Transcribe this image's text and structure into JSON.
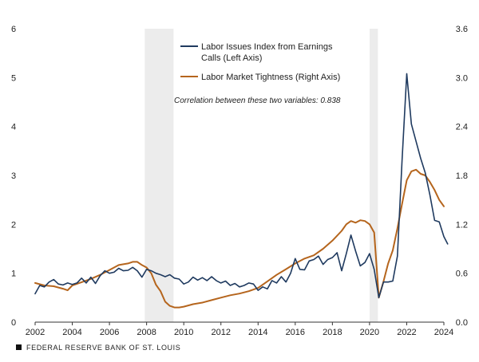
{
  "chart_data": {
    "type": "line",
    "left_axis": {
      "range": [
        0,
        6
      ],
      "ticks": [
        "0",
        "1",
        "2",
        "3",
        "4",
        "5",
        "6"
      ]
    },
    "right_axis": {
      "range": [
        0,
        3.6
      ],
      "ticks": [
        "0.0",
        "0.6",
        "1.2",
        "1.8",
        "2.4",
        "3.0",
        "3.6"
      ]
    },
    "x_axis": {
      "range": [
        2002,
        2024
      ],
      "ticks": [
        "2002",
        "2004",
        "2006",
        "2008",
        "2010",
        "2012",
        "2014",
        "2016",
        "2018",
        "2020",
        "2022",
        "2024"
      ]
    },
    "recessions": [
      [
        2007.9,
        2009.45
      ],
      [
        2020.0,
        2020.45
      ]
    ],
    "series": [
      {
        "name": "Labor Issues Index from Earnings Calls (Left Axis)",
        "axis": "left",
        "color": "#1f3a5f",
        "points": [
          [
            2002.0,
            0.58
          ],
          [
            2002.25,
            0.75
          ],
          [
            2002.5,
            0.72
          ],
          [
            2002.75,
            0.82
          ],
          [
            2003.0,
            0.87
          ],
          [
            2003.25,
            0.78
          ],
          [
            2003.5,
            0.76
          ],
          [
            2003.75,
            0.8
          ],
          [
            2004.0,
            0.77
          ],
          [
            2004.25,
            0.8
          ],
          [
            2004.5,
            0.9
          ],
          [
            2004.75,
            0.8
          ],
          [
            2005.0,
            0.92
          ],
          [
            2005.25,
            0.79
          ],
          [
            2005.5,
            0.95
          ],
          [
            2005.75,
            1.05
          ],
          [
            2006.0,
            1.0
          ],
          [
            2006.25,
            1.02
          ],
          [
            2006.5,
            1.1
          ],
          [
            2006.75,
            1.05
          ],
          [
            2007.0,
            1.06
          ],
          [
            2007.25,
            1.12
          ],
          [
            2007.5,
            1.05
          ],
          [
            2007.75,
            0.92
          ],
          [
            2008.0,
            1.08
          ],
          [
            2008.25,
            1.05
          ],
          [
            2008.5,
            1.0
          ],
          [
            2008.75,
            0.97
          ],
          [
            2009.0,
            0.93
          ],
          [
            2009.25,
            0.97
          ],
          [
            2009.5,
            0.9
          ],
          [
            2009.75,
            0.88
          ],
          [
            2010.0,
            0.78
          ],
          [
            2010.25,
            0.82
          ],
          [
            2010.5,
            0.92
          ],
          [
            2010.75,
            0.86
          ],
          [
            2011.0,
            0.91
          ],
          [
            2011.25,
            0.85
          ],
          [
            2011.5,
            0.93
          ],
          [
            2011.75,
            0.85
          ],
          [
            2012.0,
            0.8
          ],
          [
            2012.25,
            0.84
          ],
          [
            2012.5,
            0.75
          ],
          [
            2012.75,
            0.79
          ],
          [
            2013.0,
            0.72
          ],
          [
            2013.25,
            0.75
          ],
          [
            2013.5,
            0.8
          ],
          [
            2013.75,
            0.78
          ],
          [
            2014.0,
            0.65
          ],
          [
            2014.25,
            0.72
          ],
          [
            2014.5,
            0.68
          ],
          [
            2014.75,
            0.85
          ],
          [
            2015.0,
            0.8
          ],
          [
            2015.25,
            0.93
          ],
          [
            2015.5,
            0.82
          ],
          [
            2015.75,
            1.0
          ],
          [
            2016.0,
            1.3
          ],
          [
            2016.25,
            1.08
          ],
          [
            2016.5,
            1.07
          ],
          [
            2016.75,
            1.25
          ],
          [
            2017.0,
            1.28
          ],
          [
            2017.25,
            1.35
          ],
          [
            2017.5,
            1.18
          ],
          [
            2017.75,
            1.28
          ],
          [
            2018.0,
            1.32
          ],
          [
            2018.25,
            1.42
          ],
          [
            2018.5,
            1.05
          ],
          [
            2018.75,
            1.4
          ],
          [
            2019.0,
            1.78
          ],
          [
            2019.25,
            1.45
          ],
          [
            2019.5,
            1.15
          ],
          [
            2019.75,
            1.22
          ],
          [
            2020.0,
            1.4
          ],
          [
            2020.25,
            1.08
          ],
          [
            2020.5,
            0.5
          ],
          [
            2020.75,
            0.82
          ],
          [
            2021.0,
            0.82
          ],
          [
            2021.25,
            0.84
          ],
          [
            2021.5,
            1.35
          ],
          [
            2021.75,
            3.3
          ],
          [
            2022.0,
            5.08
          ],
          [
            2022.25,
            4.05
          ],
          [
            2022.5,
            3.7
          ],
          [
            2022.75,
            3.35
          ],
          [
            2023.0,
            3.05
          ],
          [
            2023.25,
            2.6
          ],
          [
            2023.5,
            2.08
          ],
          [
            2023.75,
            2.05
          ],
          [
            2024.0,
            1.75
          ],
          [
            2024.2,
            1.6
          ]
        ]
      },
      {
        "name": "Labor Market Tightness (Right Axis)",
        "axis": "right",
        "color": "#b5651d",
        "points": [
          [
            2002.0,
            0.48
          ],
          [
            2002.5,
            0.45
          ],
          [
            2003.0,
            0.44
          ],
          [
            2003.5,
            0.41
          ],
          [
            2003.75,
            0.39
          ],
          [
            2004.0,
            0.45
          ],
          [
            2004.5,
            0.49
          ],
          [
            2005.0,
            0.53
          ],
          [
            2005.5,
            0.58
          ],
          [
            2006.0,
            0.64
          ],
          [
            2006.5,
            0.7
          ],
          [
            2007.0,
            0.72
          ],
          [
            2007.25,
            0.74
          ],
          [
            2007.5,
            0.74
          ],
          [
            2007.75,
            0.7
          ],
          [
            2008.0,
            0.67
          ],
          [
            2008.25,
            0.6
          ],
          [
            2008.5,
            0.46
          ],
          [
            2008.75,
            0.38
          ],
          [
            2009.0,
            0.25
          ],
          [
            2009.25,
            0.2
          ],
          [
            2009.5,
            0.18
          ],
          [
            2009.75,
            0.18
          ],
          [
            2010.0,
            0.19
          ],
          [
            2010.5,
            0.22
          ],
          [
            2011.0,
            0.24
          ],
          [
            2011.5,
            0.27
          ],
          [
            2012.0,
            0.3
          ],
          [
            2012.5,
            0.33
          ],
          [
            2013.0,
            0.35
          ],
          [
            2013.5,
            0.38
          ],
          [
            2014.0,
            0.42
          ],
          [
            2014.5,
            0.5
          ],
          [
            2015.0,
            0.58
          ],
          [
            2015.5,
            0.65
          ],
          [
            2016.0,
            0.72
          ],
          [
            2016.5,
            0.78
          ],
          [
            2017.0,
            0.82
          ],
          [
            2017.5,
            0.9
          ],
          [
            2018.0,
            1.0
          ],
          [
            2018.5,
            1.12
          ],
          [
            2018.75,
            1.2
          ],
          [
            2019.0,
            1.24
          ],
          [
            2019.25,
            1.22
          ],
          [
            2019.5,
            1.25
          ],
          [
            2019.75,
            1.24
          ],
          [
            2020.0,
            1.2
          ],
          [
            2020.25,
            1.1
          ],
          [
            2020.5,
            0.3
          ],
          [
            2020.75,
            0.5
          ],
          [
            2021.0,
            0.72
          ],
          [
            2021.25,
            0.88
          ],
          [
            2021.5,
            1.15
          ],
          [
            2021.75,
            1.45
          ],
          [
            2022.0,
            1.74
          ],
          [
            2022.25,
            1.85
          ],
          [
            2022.5,
            1.87
          ],
          [
            2022.75,
            1.82
          ],
          [
            2023.0,
            1.8
          ],
          [
            2023.25,
            1.72
          ],
          [
            2023.5,
            1.62
          ],
          [
            2023.75,
            1.5
          ],
          [
            2024.0,
            1.42
          ]
        ]
      }
    ],
    "legend": {
      "items": [
        {
          "line1": "Labor Issues Index from Earnings",
          "line2": "Calls (Left Axis)",
          "color": "#1f3a5f"
        },
        {
          "line1": "Labor Market Tightness (Right Axis)",
          "color": "#b5651d"
        }
      ],
      "placement": "top-center"
    },
    "annotation": "Correlation between these two variables: 0.838",
    "title": "",
    "xlabel": "",
    "ylabel": ""
  },
  "source": "FEDERAL RESERVE BANK OF ST. LOUIS"
}
